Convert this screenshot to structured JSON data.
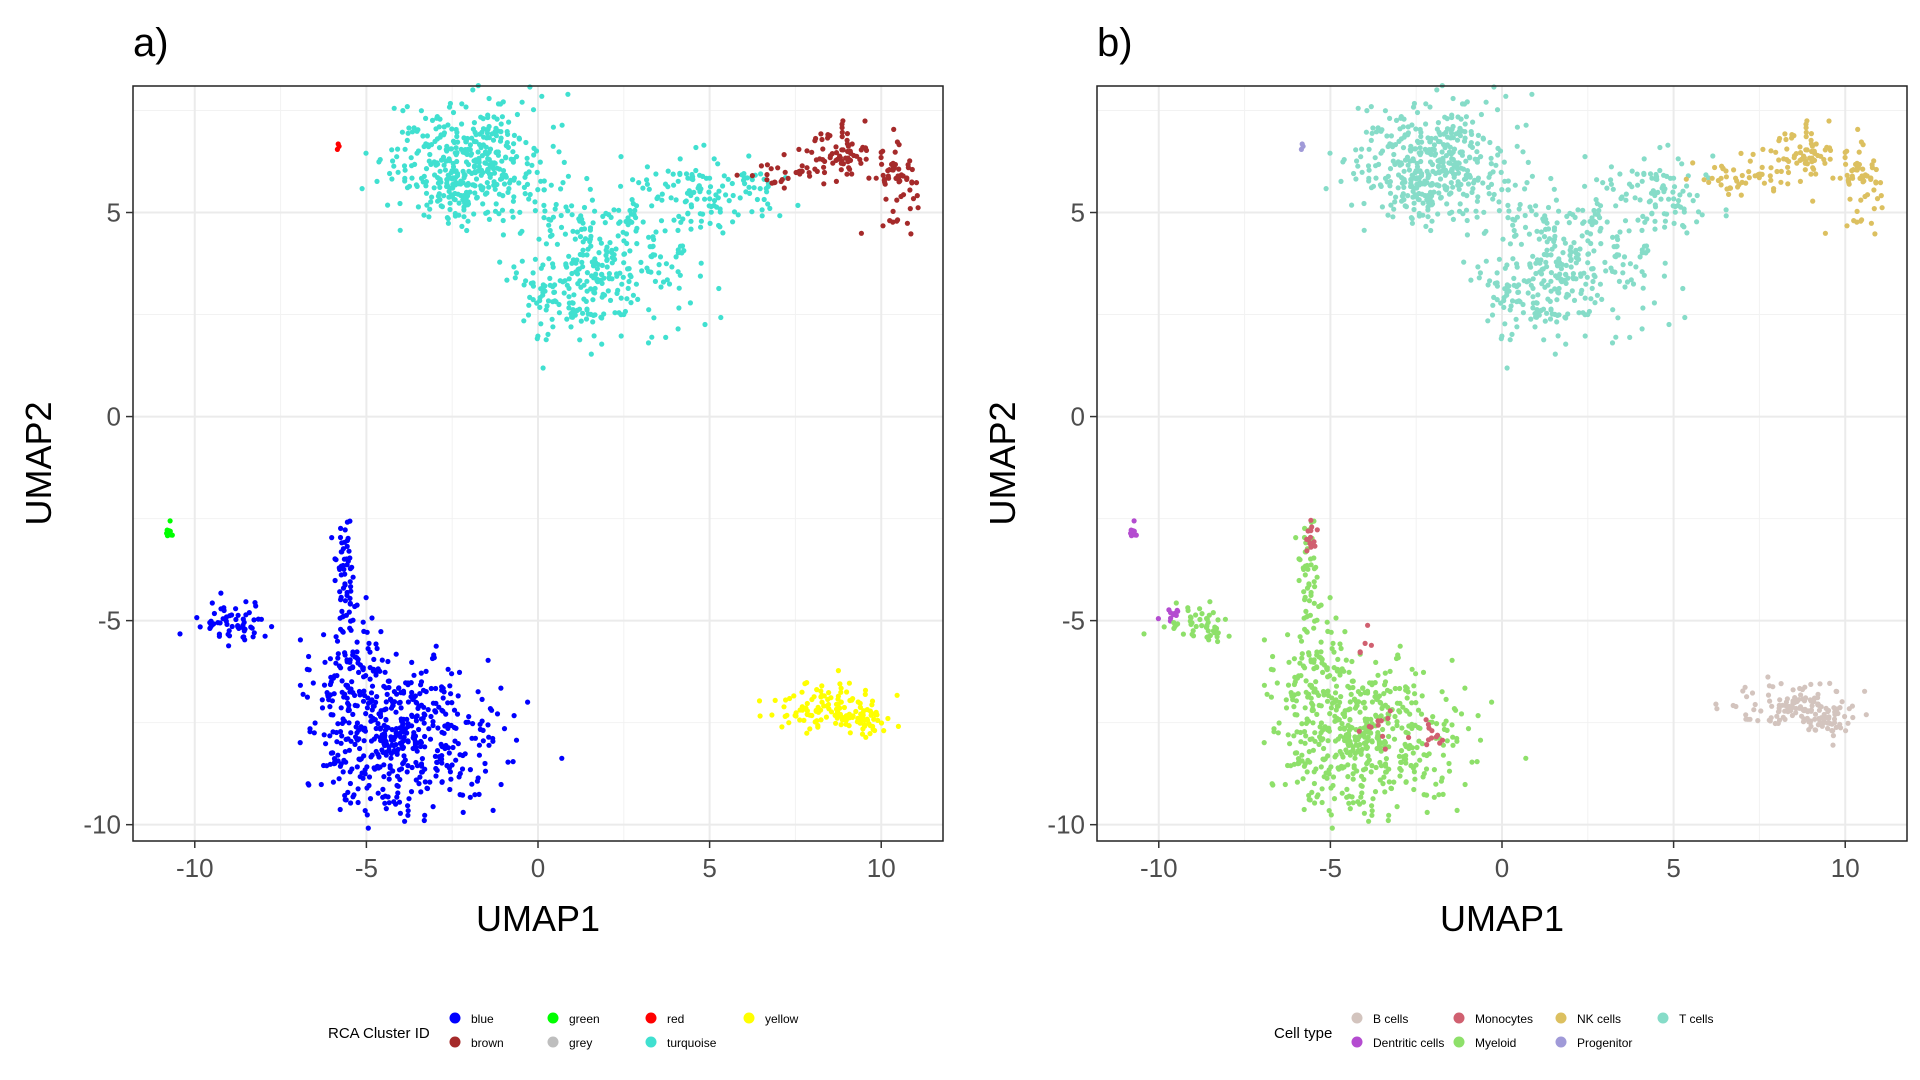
{
  "chart_data": [
    {
      "type": "scatter",
      "panel_label": "a)",
      "title": "",
      "xlabel": "UMAP1",
      "ylabel": "UMAP2",
      "xlim": [
        -11.8,
        11.8
      ],
      "ylim": [
        -10.4,
        8.1
      ],
      "x_ticks": [
        -10,
        -5,
        0,
        5,
        10
      ],
      "x_tick_labels": [
        "-10",
        "-5",
        "0",
        "5",
        "10"
      ],
      "y_ticks": [
        -10,
        -5,
        0,
        5
      ],
      "y_tick_labels": [
        "-10",
        "-5",
        "0",
        "5"
      ],
      "grid": true,
      "legend_position": "bottom",
      "legend_title": "RCA Cluster ID",
      "legend": [
        {
          "label": "blue",
          "color": "#0000ff"
        },
        {
          "label": "brown",
          "color": "#a52a2a"
        },
        {
          "label": "green",
          "color": "#00ff00"
        },
        {
          "label": "grey",
          "color": "#bebebe"
        },
        {
          "label": "red",
          "color": "#ff0000"
        },
        {
          "label": "turquoise",
          "color": "#40e0d0"
        },
        {
          "label": "yellow",
          "color": "#ffff00"
        }
      ],
      "series": [
        {
          "name": "turquoise",
          "color": "#40e0d0",
          "clusters": [
            {
              "cx": -2.1,
              "cy": 6.2,
              "sx": 1.1,
              "sy": 0.7,
              "n": 420
            },
            {
              "cx": 1.8,
              "cy": 3.9,
              "sx": 1.4,
              "sy": 0.9,
              "n": 300
            },
            {
              "cx": 0.8,
              "cy": 2.9,
              "sx": 0.6,
              "sy": 0.5,
              "n": 60
            },
            {
              "cx": 4.6,
              "cy": 5.4,
              "sx": 0.8,
              "sy": 0.5,
              "n": 90
            },
            {
              "cx": 6.5,
              "cy": 5.5,
              "sx": 0.6,
              "sy": 0.3,
              "n": 30
            }
          ]
        },
        {
          "name": "brown",
          "color": "#a52a2a",
          "clusters": [
            {
              "cx": 8.7,
              "cy": 6.4,
              "sx": 0.5,
              "sy": 0.35,
              "n": 70
            },
            {
              "cx": 10.4,
              "cy": 5.7,
              "sx": 0.3,
              "sy": 0.45,
              "n": 60
            },
            {
              "cx": 7.2,
              "cy": 5.9,
              "sx": 0.6,
              "sy": 0.2,
              "n": 30
            }
          ]
        },
        {
          "name": "red",
          "color": "#ff0000",
          "clusters": [
            {
              "cx": -5.8,
              "cy": 6.65,
              "sx": 0.03,
              "sy": 0.03,
              "n": 3
            }
          ]
        },
        {
          "name": "green",
          "color": "#00ff00",
          "clusters": [
            {
              "cx": -10.75,
              "cy": -2.85,
              "sx": 0.08,
              "sy": 0.1,
              "n": 10
            }
          ]
        },
        {
          "name": "blue",
          "color": "#0000ff",
          "clusters": [
            {
              "cx": -4.0,
              "cy": -7.9,
              "sx": 1.2,
              "sy": 0.9,
              "n": 480
            },
            {
              "cx": -5.5,
              "cy": -6.3,
              "sx": 0.6,
              "sy": 0.7,
              "n": 110
            },
            {
              "cx": -5.6,
              "cy": -4.0,
              "sx": 0.15,
              "sy": 0.75,
              "n": 60
            },
            {
              "cx": -8.9,
              "cy": -5.1,
              "sx": 0.6,
              "sy": 0.25,
              "n": 60
            }
          ]
        },
        {
          "name": "yellow",
          "color": "#ffff00",
          "clusters": [
            {
              "cx": 8.5,
              "cy": -7.1,
              "sx": 0.9,
              "sy": 0.3,
              "n": 110
            },
            {
              "cx": 9.5,
              "cy": -7.45,
              "sx": 0.3,
              "sy": 0.2,
              "n": 40
            }
          ]
        }
      ]
    },
    {
      "type": "scatter",
      "panel_label": "b)",
      "title": "",
      "xlabel": "UMAP1",
      "ylabel": "UMAP2",
      "xlim": [
        -11.8,
        11.8
      ],
      "ylim": [
        -10.4,
        8.1
      ],
      "x_ticks": [
        -10,
        -5,
        0,
        5,
        10
      ],
      "x_tick_labels": [
        "-10",
        "-5",
        "0",
        "5",
        "10"
      ],
      "y_ticks": [
        -10,
        -5,
        0,
        5
      ],
      "y_tick_labels": [
        "-10",
        "-5",
        "0",
        "5"
      ],
      "grid": true,
      "legend_position": "bottom",
      "legend_title": "Cell type",
      "legend": [
        {
          "label": "B cells",
          "color": "#d3c4be"
        },
        {
          "label": "Dentritic cells",
          "color": "#b44cd0"
        },
        {
          "label": "Monocytes",
          "color": "#d06070"
        },
        {
          "label": "Myeloid",
          "color": "#8ee06a"
        },
        {
          "label": "NK cells",
          "color": "#dcc060"
        },
        {
          "label": "Progenitor",
          "color": "#a09ad8"
        },
        {
          "label": "T cells",
          "color": "#86dcc8"
        }
      ],
      "series": [
        {
          "name": "T cells",
          "color": "#86dcc8",
          "clusters": [
            {
              "cx": -2.1,
              "cy": 6.2,
              "sx": 1.1,
              "sy": 0.7,
              "n": 420
            },
            {
              "cx": 1.8,
              "cy": 3.9,
              "sx": 1.4,
              "sy": 0.9,
              "n": 300
            },
            {
              "cx": 0.8,
              "cy": 2.9,
              "sx": 0.6,
              "sy": 0.5,
              "n": 60
            },
            {
              "cx": 4.6,
              "cy": 5.4,
              "sx": 0.8,
              "sy": 0.5,
              "n": 90
            }
          ]
        },
        {
          "name": "NK cells",
          "color": "#dcc060",
          "clusters": [
            {
              "cx": 8.7,
              "cy": 6.4,
              "sx": 0.5,
              "sy": 0.35,
              "n": 70
            },
            {
              "cx": 10.4,
              "cy": 5.7,
              "sx": 0.3,
              "sy": 0.45,
              "n": 60
            },
            {
              "cx": 7.0,
              "cy": 5.8,
              "sx": 0.7,
              "sy": 0.25,
              "n": 50
            }
          ]
        },
        {
          "name": "Progenitor",
          "color": "#a09ad8",
          "clusters": [
            {
              "cx": -5.8,
              "cy": 6.65,
              "sx": 0.03,
              "sy": 0.03,
              "n": 3
            }
          ]
        },
        {
          "name": "Dentritic cells",
          "color": "#b44cd0",
          "clusters": [
            {
              "cx": -10.75,
              "cy": -2.85,
              "sx": 0.08,
              "sy": 0.1,
              "n": 10
            },
            {
              "cx": -9.6,
              "cy": -4.85,
              "sx": 0.15,
              "sy": 0.1,
              "n": 10
            }
          ]
        },
        {
          "name": "Myeloid",
          "color": "#8ee06a",
          "clusters": [
            {
              "cx": -4.0,
              "cy": -7.9,
              "sx": 1.2,
              "sy": 0.9,
              "n": 480
            },
            {
              "cx": -5.5,
              "cy": -6.3,
              "sx": 0.6,
              "sy": 0.7,
              "n": 110
            },
            {
              "cx": -5.6,
              "cy": -4.0,
              "sx": 0.15,
              "sy": 0.75,
              "n": 50
            },
            {
              "cx": -8.9,
              "cy": -5.1,
              "sx": 0.6,
              "sy": 0.25,
              "n": 50
            }
          ]
        },
        {
          "name": "Monocytes",
          "color": "#d06070",
          "clusters": [
            {
              "cx": -5.6,
              "cy": -3.0,
              "sx": 0.1,
              "sy": 0.25,
              "n": 15
            },
            {
              "cx": -2.0,
              "cy": -7.7,
              "sx": 0.5,
              "sy": 0.2,
              "n": 12
            },
            {
              "cx": -3.6,
              "cy": -7.5,
              "sx": 0.3,
              "sy": 0.3,
              "n": 10
            },
            {
              "cx": -4.0,
              "cy": -5.7,
              "sx": 0.3,
              "sy": 0.2,
              "n": 5
            }
          ]
        },
        {
          "name": "B cells",
          "color": "#d3c4be",
          "clusters": [
            {
              "cx": 8.5,
              "cy": -7.1,
              "sx": 0.9,
              "sy": 0.3,
              "n": 110
            },
            {
              "cx": 9.5,
              "cy": -7.45,
              "sx": 0.3,
              "sy": 0.2,
              "n": 40
            }
          ]
        }
      ]
    }
  ]
}
